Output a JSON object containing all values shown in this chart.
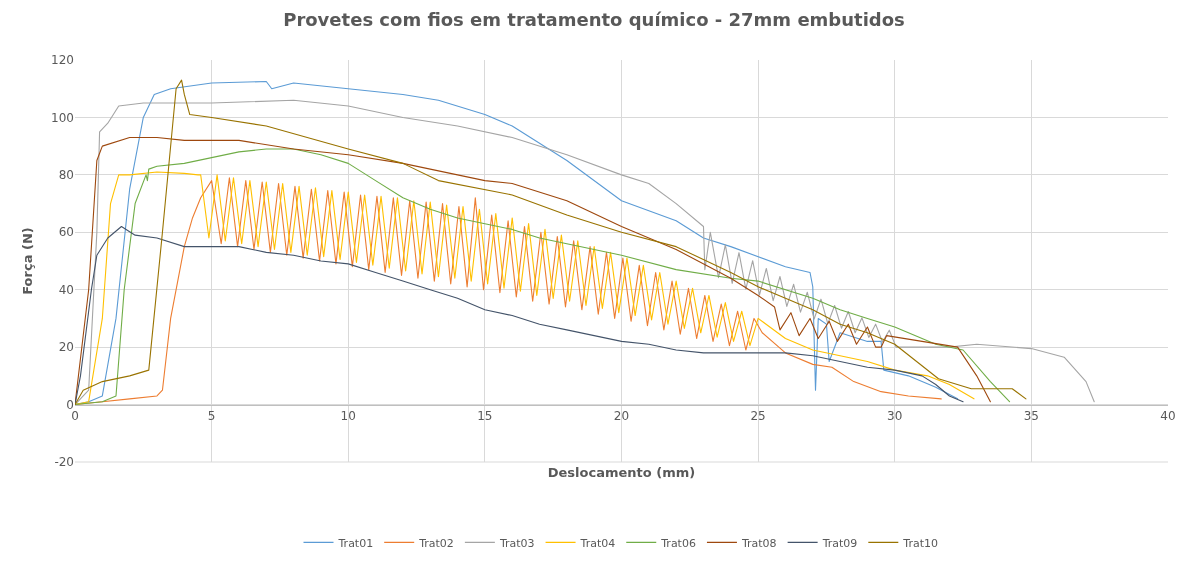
{
  "chart_data": {
    "type": "line",
    "title": "Provetes com fios em tratamento químico - 27mm embutidos",
    "xlabel": "Deslocamento (mm)",
    "ylabel": "Força (N)",
    "xlim": [
      0,
      40
    ],
    "xticks": [
      0,
      5,
      10,
      15,
      20,
      25,
      30,
      35,
      40
    ],
    "ylim": [
      -20,
      120
    ],
    "yticks": [
      -20,
      0,
      20,
      40,
      60,
      80,
      100,
      120
    ],
    "grid": true,
    "legend": "bottom",
    "marker": "none",
    "line_style": "solid",
    "series": [
      {
        "name": "Trat01",
        "color": "#5b9bd5",
        "x": [
          0,
          0.5,
          1.0,
          1.5,
          2.0,
          2.5,
          2.9,
          3.5,
          5,
          7,
          7.2,
          8,
          10,
          12,
          13.3,
          15,
          16,
          18,
          20,
          22,
          23,
          24,
          26,
          26.9,
          27,
          27.1,
          27.2,
          27.5,
          27.6,
          28,
          29,
          29.5,
          29.6,
          30.5,
          31.5,
          32.3
        ],
        "values": [
          0,
          1,
          3,
          30,
          75,
          100,
          108,
          110,
          112,
          112.5,
          110,
          112,
          110,
          108,
          106,
          101,
          97,
          85,
          71,
          64,
          58,
          55,
          48,
          46,
          41,
          5,
          30,
          28,
          15,
          25,
          22,
          22,
          12,
          10,
          6,
          2
        ]
      },
      {
        "name": "Trat02",
        "color": "#ed7d31",
        "x": [
          0,
          1,
          2,
          3,
          3.2,
          3.5,
          4,
          4.3,
          4.6,
          5.0,
          5.35,
          5.65,
          5.95,
          6.25,
          6.55,
          6.85,
          7.15,
          7.45,
          7.75,
          8.05,
          8.35,
          8.65,
          8.95,
          9.25,
          9.55,
          9.85,
          10.15,
          10.45,
          10.75,
          11.05,
          11.35,
          11.65,
          11.95,
          12.25,
          12.55,
          12.85,
          13.15,
          13.45,
          13.75,
          14.05,
          14.35,
          14.65,
          14.95,
          15.25,
          15.55,
          15.85,
          16.15,
          16.45,
          16.75,
          17.05,
          17.35,
          17.65,
          17.95,
          18.25,
          18.55,
          18.85,
          19.15,
          19.45,
          19.75,
          20.05,
          20.35,
          20.65,
          20.95,
          21.25,
          21.55,
          21.85,
          22.15,
          22.45,
          22.75,
          23.05,
          23.35,
          23.65,
          23.95,
          24.25,
          24.55,
          24.85,
          25.15,
          26,
          27,
          27.7,
          28.5,
          29.5,
          30.5,
          31.7
        ],
        "values": [
          0,
          1,
          2,
          3,
          5,
          30,
          55,
          65,
          72,
          78,
          56,
          79,
          55,
          78,
          54,
          77.5,
          53,
          77,
          52,
          76,
          51,
          75,
          50,
          74.5,
          49,
          74,
          48,
          73,
          47,
          72.5,
          46,
          72,
          45,
          71,
          44,
          70.5,
          43,
          70,
          42,
          69,
          41,
          72,
          40,
          66,
          39,
          64,
          37.5,
          62,
          36,
          60,
          35,
          58.5,
          34,
          57,
          33,
          55,
          31.5,
          53,
          30,
          51,
          29,
          48.5,
          27.5,
          46,
          26,
          43,
          24.5,
          40.5,
          23,
          38,
          22,
          35,
          20.5,
          32.5,
          19,
          30,
          25,
          18,
          14,
          13,
          8,
          4.5,
          3,
          2
        ]
      },
      {
        "name": "Trat03",
        "color": "#a5a5a5",
        "x": [
          0,
          0.5,
          0.8,
          0.9,
          1.2,
          1.6,
          2.5,
          5,
          8,
          10,
          12,
          14,
          16,
          18,
          20,
          21,
          22,
          23,
          23.05,
          23.25,
          23.55,
          23.8,
          24.05,
          24.3,
          24.55,
          24.8,
          25.05,
          25.3,
          25.55,
          25.8,
          26.05,
          26.3,
          26.55,
          26.8,
          27.05,
          27.3,
          27.55,
          27.8,
          28.05,
          28.3,
          28.55,
          28.8,
          29.05,
          29.3,
          29.55,
          29.8,
          30.05,
          30.5,
          32,
          33,
          35,
          36.2,
          37,
          37.3
        ],
        "values": [
          0,
          5,
          60,
          95,
          98,
          104,
          105,
          105,
          106,
          104,
          100,
          97,
          93,
          87,
          80,
          77,
          70,
          62,
          47,
          60,
          44.2,
          55.6,
          42.2,
          52.9,
          40.2,
          50.1,
          38.2,
          47.4,
          36.2,
          44.6,
          34.2,
          41.9,
          32.2,
          39.1,
          29.8,
          36.7,
          28.2,
          34.5,
          26.6,
          32.4,
          25,
          30.2,
          23.4,
          28,
          21.8,
          25.9,
          20,
          20,
          20,
          21,
          19.5,
          16.5,
          8,
          1
        ]
      },
      {
        "name": "Trat04",
        "color": "#ffc000",
        "x": [
          0,
          0.5,
          1,
          1.3,
          1.6,
          2,
          3,
          4,
          4.5,
          4.6,
          4.9,
          5.2,
          5.5,
          5.8,
          6.1,
          6.4,
          6.7,
          7.0,
          7.3,
          7.6,
          7.9,
          8.2,
          8.5,
          8.8,
          9.1,
          9.4,
          9.7,
          10.0,
          10.3,
          10.6,
          10.9,
          11.2,
          11.5,
          11.8,
          12.1,
          12.4,
          12.7,
          13.0,
          13.3,
          13.6,
          13.9,
          14.2,
          14.5,
          14.8,
          15.1,
          15.4,
          15.7,
          16.0,
          16.3,
          16.6,
          16.9,
          17.2,
          17.5,
          17.8,
          18.1,
          18.4,
          18.7,
          19.0,
          19.3,
          19.6,
          19.9,
          20.2,
          20.5,
          20.8,
          21.1,
          21.4,
          21.7,
          22.0,
          22.3,
          22.6,
          22.9,
          23.2,
          23.5,
          23.8,
          24.1,
          24.4,
          24.7,
          25.0,
          26,
          27,
          28,
          29,
          30,
          31.2,
          32,
          32.9
        ],
        "values": [
          0,
          1,
          30,
          70,
          80,
          80,
          81,
          80.5,
          80,
          80,
          58,
          80,
          57,
          79,
          56,
          78,
          55,
          77.5,
          54,
          77,
          53,
          76,
          52,
          75.5,
          51.5,
          74.5,
          50.5,
          74,
          49.5,
          73,
          48.5,
          72.5,
          47.5,
          72,
          46.5,
          71,
          45.5,
          70.5,
          44.5,
          69.5,
          44,
          69,
          43,
          68,
          42,
          66.5,
          40.5,
          65,
          39.5,
          63,
          38,
          61,
          37,
          59,
          36,
          57,
          34.5,
          55,
          33.5,
          53,
          32,
          51,
          31,
          48.5,
          29.5,
          46,
          28,
          43,
          26.5,
          40.5,
          25,
          38,
          23.5,
          35.5,
          22,
          32.5,
          20.5,
          30,
          23,
          19,
          17,
          15,
          12,
          10,
          7,
          2
        ]
      },
      {
        "name": "Trat06",
        "color": "#70ad47",
        "x": [
          0,
          1,
          1.5,
          1.8,
          2.2,
          2.6,
          2.65,
          2.7,
          3,
          4,
          5,
          6,
          7,
          8,
          9,
          10,
          11,
          12,
          13,
          14,
          15,
          16,
          17,
          18,
          20,
          22,
          24,
          25,
          27,
          28,
          29,
          30,
          31.5,
          32.5,
          33.5,
          34.2
        ],
        "values": [
          0,
          1,
          3,
          40,
          70,
          80,
          78,
          82,
          83,
          84,
          86,
          88,
          89,
          89,
          87,
          84,
          78,
          72,
          68,
          65,
          63,
          61,
          58,
          56,
          52,
          47,
          44,
          43,
          37,
          33,
          30,
          27,
          21,
          19,
          8,
          1
        ]
      },
      {
        "name": "Trat08",
        "color": "#9e480e",
        "x": [
          0,
          0.5,
          0.8,
          1,
          2,
          3,
          4,
          6,
          8,
          10,
          12,
          14,
          15,
          16,
          18,
          20,
          22,
          24,
          25,
          25.6,
          25.8,
          26.2,
          26.5,
          26.9,
          27.2,
          27.6,
          27.9,
          28.3,
          28.6,
          29,
          29.3,
          29.5,
          29.7,
          31,
          32.3,
          33,
          33.5
        ],
        "values": [
          0,
          40,
          85,
          90,
          93,
          93,
          92,
          92,
          89,
          87,
          84,
          80,
          78,
          77,
          71,
          62,
          54,
          44,
          38,
          34,
          26,
          32,
          24,
          30,
          23,
          29,
          22,
          28,
          21,
          27,
          20,
          20,
          24,
          22,
          20,
          10,
          1
        ]
      },
      {
        "name": "Trat09",
        "color": "#44546a",
        "x": [
          0,
          0.2,
          0.6,
          0.8,
          1.2,
          1.7,
          2.2,
          3,
          4,
          5,
          6,
          7,
          8,
          9,
          10,
          11,
          12,
          13,
          14,
          15,
          16,
          17,
          18,
          19,
          20,
          21,
          22,
          23,
          24,
          25,
          26,
          27,
          28,
          29,
          30,
          31,
          31.5,
          32,
          32.5
        ],
        "values": [
          0,
          10,
          40,
          52,
          58,
          62,
          59,
          58,
          55,
          55,
          55,
          53,
          52,
          50,
          49,
          46,
          43,
          40,
          37,
          33,
          31,
          28,
          26,
          24,
          22,
          21,
          19,
          18,
          18,
          18,
          18,
          17,
          15,
          13,
          12,
          10,
          7,
          3,
          1
        ]
      },
      {
        "name": "Trat10",
        "color": "#997300",
        "x": [
          0,
          0.3,
          1,
          2,
          2.7,
          3.2,
          3.7,
          3.9,
          4.0,
          4.2,
          5,
          7,
          10,
          12,
          13.3,
          16,
          18,
          20,
          22,
          24,
          25,
          26,
          27,
          28,
          29,
          30,
          31.6,
          32.8,
          34.3,
          34.8
        ],
        "values": [
          0,
          5,
          8,
          10,
          12,
          60,
          110,
          113,
          108,
          101,
          100,
          97,
          89,
          84,
          78,
          73,
          66,
          60,
          55,
          46,
          41,
          37,
          33,
          28,
          25,
          21,
          9,
          5.5,
          5.5,
          2
        ]
      }
    ]
  }
}
